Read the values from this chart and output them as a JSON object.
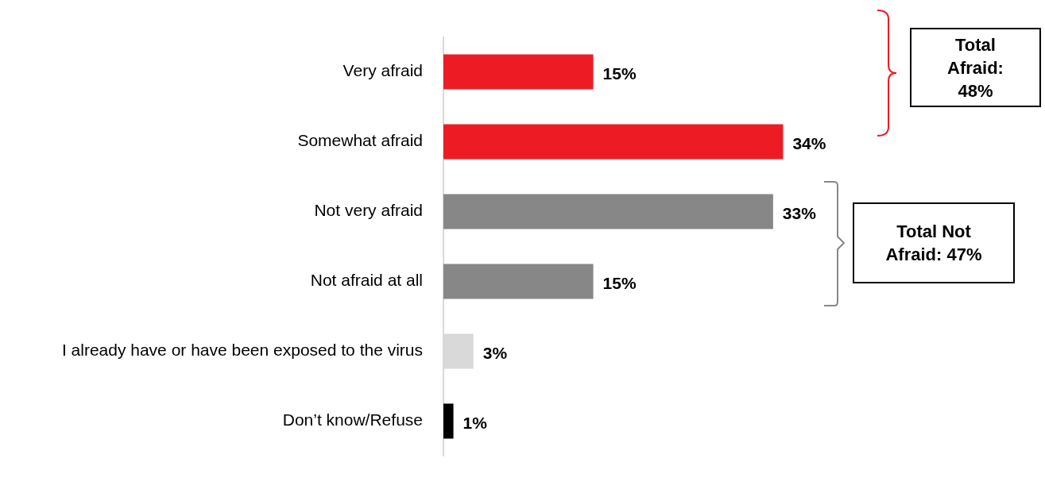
{
  "chart_data": {
    "type": "bar",
    "orientation": "horizontal",
    "categories": [
      "Very afraid",
      "Somewhat afraid",
      "Not very afraid",
      "Not afraid at all",
      "I already have or have been exposed to the virus",
      "Don’t know/Refuse"
    ],
    "values": [
      15,
      34,
      33,
      15,
      3,
      1
    ],
    "colors": [
      "#ed1c24",
      "#ed1c24",
      "#878787",
      "#878787",
      "#d9d9d9",
      "#000000"
    ],
    "value_labels": [
      "15%",
      "34%",
      "33%",
      "15%",
      "3%",
      "1%"
    ],
    "annotations": [
      "Total Afraid: 48%",
      "Total Not Afraid: 47%"
    ],
    "grid": false,
    "legend": false
  }
}
